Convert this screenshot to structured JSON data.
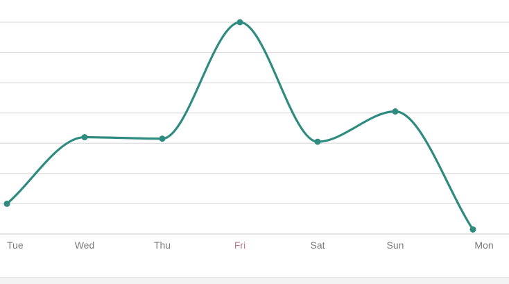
{
  "chart_data": {
    "type": "line",
    "smooth": true,
    "categories": [
      "Tue",
      "Wed",
      "Thu",
      "Fri",
      "Sat",
      "Sun",
      "Mon"
    ],
    "series": [
      {
        "values": [
          1.0,
          3.2,
          3.15,
          7.0,
          3.05,
          4.05,
          0.15
        ],
        "color": "#2e8b7f",
        "markers": true
      }
    ],
    "ylim": [
      0,
      7.0
    ],
    "grid": true,
    "y_tick_labels_visible": false,
    "legend": "none"
  },
  "colors": {
    "line": "#2e8b7f",
    "grid": "#dcdcdc",
    "tick_label": "#7a7a7a",
    "tick_label_highlight": "#c0798c"
  }
}
